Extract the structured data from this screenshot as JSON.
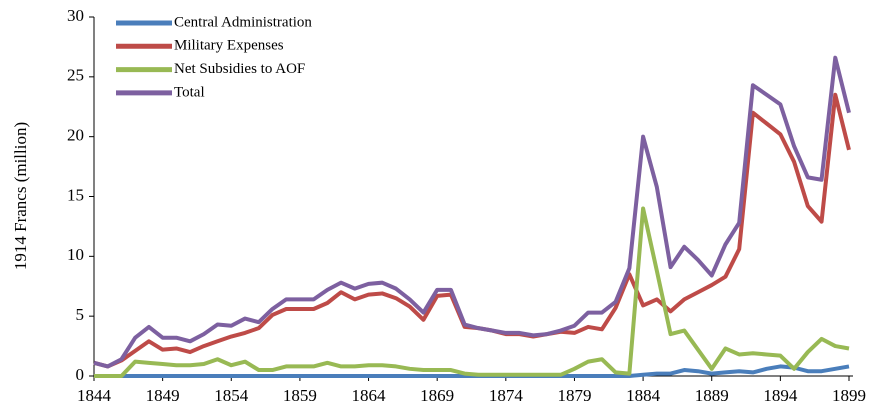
{
  "chart_data": {
    "type": "line",
    "y_label": "1914 Francs (million)",
    "x": [
      1844,
      1845,
      1846,
      1847,
      1848,
      1849,
      1850,
      1851,
      1852,
      1853,
      1854,
      1855,
      1856,
      1857,
      1858,
      1859,
      1860,
      1861,
      1862,
      1863,
      1864,
      1865,
      1866,
      1867,
      1868,
      1869,
      1870,
      1871,
      1872,
      1873,
      1874,
      1875,
      1876,
      1877,
      1878,
      1879,
      1880,
      1881,
      1882,
      1883,
      1884,
      1885,
      1886,
      1887,
      1888,
      1889,
      1890,
      1891,
      1892,
      1893,
      1894,
      1895,
      1896,
      1897,
      1898,
      1899
    ],
    "series": [
      {
        "name": "Central Administration",
        "color": "#4a7ebb",
        "values": [
          0,
          0,
          0,
          0,
          0,
          0,
          0,
          0,
          0,
          0,
          0,
          0,
          0,
          0,
          0,
          0,
          0,
          0,
          0,
          0,
          0,
          0,
          0,
          0,
          0,
          0,
          0,
          0,
          0,
          0,
          0,
          0,
          0,
          0,
          0,
          0,
          0,
          0,
          0,
          0,
          0.1,
          0.2,
          0.2,
          0.5,
          0.4,
          0.2,
          0.3,
          0.4,
          0.3,
          0.6,
          0.8,
          0.7,
          0.4,
          0.4,
          0.6,
          0.8
        ]
      },
      {
        "name": "Military Expenses",
        "color": "#be4b48",
        "values": [
          1.1,
          0.8,
          1.3,
          2.1,
          2.9,
          2.2,
          2.3,
          2.0,
          2.5,
          2.9,
          3.3,
          3.6,
          4.0,
          5.1,
          5.6,
          5.6,
          5.6,
          6.1,
          7.0,
          6.4,
          6.8,
          6.9,
          6.5,
          5.8,
          4.7,
          6.7,
          6.8,
          4.1,
          4.0,
          3.8,
          3.5,
          3.5,
          3.3,
          3.5,
          3.7,
          3.6,
          4.1,
          3.9,
          5.7,
          8.5,
          5.9,
          6.4,
          5.4,
          6.4,
          7.0,
          7.6,
          8.3,
          10.6,
          22.0,
          21.1,
          20.2,
          17.9,
          14.2,
          12.9,
          23.5,
          18.9
        ]
      },
      {
        "name": "Net Subsidies to AOF",
        "color": "#98b954",
        "values": [
          0,
          0,
          0,
          1.2,
          1.1,
          1.0,
          0.9,
          0.9,
          1.0,
          1.4,
          0.9,
          1.2,
          0.5,
          0.5,
          0.8,
          0.8,
          0.8,
          1.1,
          0.8,
          0.8,
          0.9,
          0.9,
          0.8,
          0.6,
          0.5,
          0.5,
          0.5,
          0.2,
          0.1,
          0.1,
          0.1,
          0.1,
          0.1,
          0.1,
          0.1,
          0.6,
          1.2,
          1.4,
          0.3,
          0.2,
          14.0,
          8.8,
          3.5,
          3.8,
          2.2,
          0.6,
          2.3,
          1.8,
          1.9,
          1.8,
          1.7,
          0.6,
          2.0,
          3.1,
          2.5,
          2.3
        ]
      },
      {
        "name": "Total",
        "color": "#7d60a0",
        "values": [
          1.1,
          0.8,
          1.4,
          3.2,
          4.1,
          3.2,
          3.2,
          2.9,
          3.5,
          4.3,
          4.2,
          4.8,
          4.5,
          5.6,
          6.4,
          6.4,
          6.4,
          7.2,
          7.8,
          7.3,
          7.7,
          7.8,
          7.3,
          6.4,
          5.3,
          7.2,
          7.2,
          4.3,
          4.0,
          3.8,
          3.6,
          3.6,
          3.4,
          3.5,
          3.8,
          4.2,
          5.3,
          5.3,
          6.2,
          9.0,
          20.0,
          15.8,
          9.1,
          10.8,
          9.7,
          8.4,
          11.0,
          12.8,
          24.3,
          23.5,
          22.7,
          19.2,
          16.6,
          16.4,
          26.6,
          22.0
        ]
      }
    ],
    "xlim": [
      1844,
      1899
    ],
    "xticks": [
      1844,
      1849,
      1854,
      1859,
      1864,
      1869,
      1874,
      1879,
      1884,
      1889,
      1894,
      1899
    ],
    "ylim": [
      0,
      30
    ],
    "yticks": [
      0,
      5,
      10,
      15,
      20,
      25,
      30
    ],
    "grid": false,
    "legend": "upper left"
  }
}
